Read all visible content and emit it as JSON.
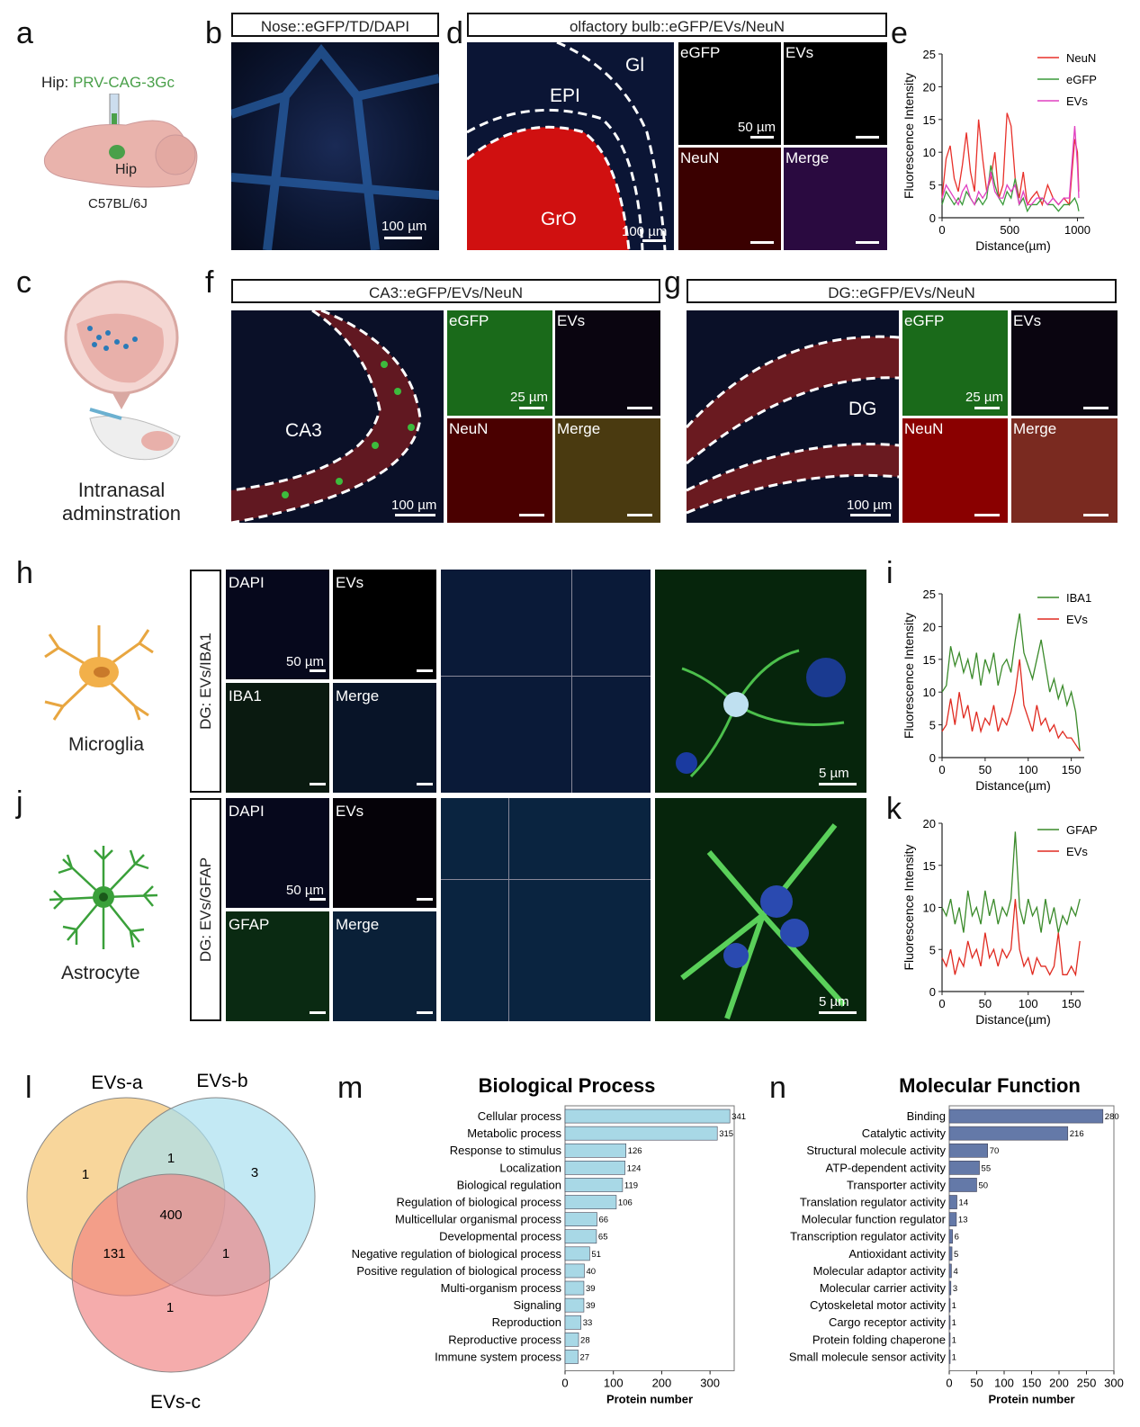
{
  "panels": {
    "a": {
      "letter": "a",
      "injection_prefix": "Hip: ",
      "injection_virus": "PRV-CAG-3Gc",
      "region": "Hip",
      "strain": "C57BL/6J"
    },
    "b": {
      "letter": "b",
      "title": "Nose::eGFP/TD/DAPI",
      "scale": "100 µm"
    },
    "c": {
      "letter": "c",
      "caption_line1": "Intranasal",
      "caption_line2": "adminstration"
    },
    "d": {
      "letter": "d",
      "title": "olfactory bulb::eGFP/EVs/NeuN",
      "regions": [
        "Gl",
        "EPI",
        "GrO"
      ],
      "scale_main": "100 µm",
      "scale_inset": "50 µm",
      "insets": [
        "eGFP",
        "EVs",
        "NeuN",
        "Merge"
      ]
    },
    "f": {
      "letter": "f",
      "title": "CA3::eGFP/EVs/NeuN",
      "region": "CA3",
      "scale_main": "100 µm",
      "scale_inset": "25 µm",
      "insets": [
        "eGFP",
        "EVs",
        "NeuN",
        "Merge"
      ]
    },
    "g": {
      "letter": "g",
      "title": "DG::eGFP/EVs/NeuN",
      "region": "DG",
      "scale_main": "100 µm",
      "scale_inset": "25 µm",
      "insets": [
        "eGFP",
        "EVs",
        "NeuN",
        "Merge"
      ]
    },
    "h": {
      "letter": "h",
      "cell": "Microglia",
      "side_label": "DG: EVs/IBA1",
      "insets": [
        "DAPI",
        "EVs",
        "IBA1",
        "Merge"
      ],
      "scale_inset": "50 µm",
      "scale_zoom": "5 µm"
    },
    "j": {
      "letter": "j",
      "cell": "Astrocyte",
      "side_label": "DG: EVs/GFAP",
      "insets": [
        "DAPI",
        "EVs",
        "GFAP",
        "Merge"
      ],
      "scale_inset": "50 µm",
      "scale_zoom": "5 µm"
    },
    "l": {
      "letter": "l",
      "sets": [
        "EVs-a",
        "EVs-b",
        "EVs-c"
      ],
      "regions": {
        "a_only": "1",
        "ab": "1",
        "b_only": "3",
        "abc": "400",
        "ac": "131",
        "bc": "1",
        "c_only": "1"
      }
    },
    "m": {
      "letter": "m"
    },
    "n": {
      "letter": "n"
    },
    "e": {
      "letter": "e"
    },
    "i": {
      "letter": "i"
    },
    "k": {
      "letter": "k"
    }
  },
  "colors": {
    "neun": "#e8302a",
    "egfp": "#3a9a3a",
    "evs": "#e040c0",
    "iba1": "#3a8a2a",
    "gfap": "#3a8a2a",
    "evs_red": "#e02a20",
    "bar_m": "#a8d8e6",
    "bar_n": "#6479a8",
    "venn_a": "#f5c87a",
    "venn_b": "#a9dff0",
    "venn_c": "#f08080"
  },
  "chart_data": [
    {
      "panel": "e",
      "type": "line",
      "xlabel": "Distance(µm)",
      "ylabel": "Fluorescence Intensity",
      "xlim": [
        0,
        1050
      ],
      "ylim": [
        0,
        25
      ],
      "xticks": [
        0,
        500,
        1000
      ],
      "yticks": [
        0,
        5,
        10,
        15,
        20,
        25
      ],
      "series": [
        {
          "name": "NeuN",
          "color": "#e8302a",
          "x": [
            0,
            30,
            60,
            90,
            120,
            150,
            180,
            210,
            240,
            270,
            300,
            330,
            360,
            390,
            420,
            450,
            480,
            510,
            540,
            570,
            600,
            630,
            660,
            700,
            740,
            780,
            820,
            860,
            900,
            940,
            980,
            1000,
            1010
          ],
          "values": [
            3,
            9,
            11,
            6,
            4,
            8,
            13,
            7,
            4,
            15,
            9,
            4,
            6,
            10,
            3,
            5,
            16,
            14,
            6,
            3,
            7,
            2,
            3,
            4,
            2,
            5,
            3,
            2,
            3,
            2,
            12,
            10,
            4
          ]
        },
        {
          "name": "eGFP",
          "color": "#3a9a3a",
          "x": [
            0,
            30,
            60,
            90,
            120,
            150,
            180,
            210,
            240,
            270,
            300,
            330,
            360,
            390,
            420,
            450,
            480,
            510,
            540,
            570,
            600,
            630,
            660,
            700,
            740,
            780,
            820,
            860,
            900,
            940,
            980,
            1000,
            1010
          ],
          "values": [
            2,
            4,
            3,
            2,
            3,
            2,
            4,
            3,
            2,
            3,
            2,
            3,
            8,
            5,
            3,
            2,
            4,
            3,
            6,
            2,
            3,
            1,
            2,
            2,
            3,
            2,
            2,
            1,
            2,
            2,
            3,
            2,
            1
          ]
        },
        {
          "name": "EVs",
          "color": "#e040c0",
          "x": [
            0,
            30,
            60,
            90,
            120,
            150,
            180,
            210,
            240,
            270,
            300,
            330,
            360,
            390,
            420,
            450,
            480,
            510,
            540,
            570,
            600,
            630,
            660,
            700,
            740,
            780,
            820,
            860,
            900,
            940,
            980,
            1000,
            1010
          ],
          "values": [
            3,
            5,
            4,
            3,
            2,
            4,
            5,
            3,
            2,
            4,
            3,
            4,
            7,
            4,
            3,
            3,
            5,
            4,
            5,
            2,
            4,
            2,
            2,
            3,
            3,
            2,
            3,
            2,
            3,
            3,
            14,
            8,
            3
          ]
        }
      ]
    },
    {
      "panel": "i",
      "type": "line",
      "xlabel": "Distance(µm)",
      "ylabel": "Fluorescence Intensity",
      "xlim": [
        0,
        165
      ],
      "ylim": [
        0,
        25
      ],
      "xticks": [
        0,
        50,
        100,
        150
      ],
      "yticks": [
        0,
        5,
        10,
        15,
        20,
        25
      ],
      "series": [
        {
          "name": "IBA1",
          "color": "#3a8a2a",
          "x": [
            0,
            5,
            10,
            15,
            20,
            25,
            30,
            35,
            40,
            45,
            50,
            55,
            60,
            65,
            70,
            75,
            80,
            85,
            90,
            95,
            100,
            105,
            110,
            115,
            120,
            125,
            130,
            135,
            140,
            145,
            150,
            155,
            160
          ],
          "values": [
            10,
            11,
            17,
            14,
            16,
            13,
            15,
            12,
            16,
            11,
            15,
            13,
            16,
            11,
            14,
            15,
            13,
            18,
            22,
            16,
            14,
            12,
            15,
            18,
            14,
            10,
            12,
            9,
            11,
            8,
            10,
            7,
            1
          ]
        },
        {
          "name": "EVs",
          "color": "#e02a20",
          "x": [
            0,
            5,
            10,
            15,
            20,
            25,
            30,
            35,
            40,
            45,
            50,
            55,
            60,
            65,
            70,
            75,
            80,
            85,
            90,
            95,
            100,
            105,
            110,
            115,
            120,
            125,
            130,
            135,
            140,
            145,
            150,
            155,
            160
          ],
          "values": [
            4,
            5,
            9,
            5,
            10,
            6,
            8,
            4,
            7,
            4,
            6,
            5,
            8,
            4,
            6,
            5,
            7,
            10,
            15,
            8,
            6,
            4,
            8,
            5,
            6,
            4,
            5,
            3,
            4,
            3,
            3,
            2,
            1
          ]
        }
      ]
    },
    {
      "panel": "k",
      "type": "line",
      "xlabel": "Distance(µm)",
      "ylabel": "Fluorescence Intensity",
      "xlim": [
        0,
        165
      ],
      "ylim": [
        0,
        20
      ],
      "xticks": [
        0,
        50,
        100,
        150
      ],
      "yticks": [
        0,
        5,
        10,
        15,
        20
      ],
      "series": [
        {
          "name": "GFAP",
          "color": "#3a8a2a",
          "x": [
            0,
            5,
            10,
            15,
            20,
            25,
            30,
            35,
            40,
            45,
            50,
            55,
            60,
            65,
            70,
            75,
            80,
            85,
            90,
            95,
            100,
            105,
            110,
            115,
            120,
            125,
            130,
            135,
            140,
            145,
            150,
            155,
            160
          ],
          "values": [
            10,
            9,
            11,
            8,
            10,
            7,
            12,
            9,
            10,
            8,
            12,
            9,
            11,
            8,
            10,
            9,
            11,
            19,
            10,
            8,
            11,
            9,
            10,
            7,
            11,
            8,
            10,
            7,
            9,
            8,
            10,
            9,
            11
          ]
        },
        {
          "name": "EVs",
          "color": "#e02a20",
          "x": [
            0,
            5,
            10,
            15,
            20,
            25,
            30,
            35,
            40,
            45,
            50,
            55,
            60,
            65,
            70,
            75,
            80,
            85,
            90,
            95,
            100,
            105,
            110,
            115,
            120,
            125,
            130,
            135,
            140,
            145,
            150,
            155,
            160
          ],
          "values": [
            4,
            3,
            5,
            2,
            4,
            3,
            6,
            4,
            5,
            3,
            7,
            4,
            5,
            3,
            5,
            4,
            5,
            11,
            5,
            3,
            4,
            2,
            4,
            3,
            3,
            2,
            3,
            7,
            2,
            2,
            3,
            2,
            6
          ]
        }
      ]
    },
    {
      "panel": "m",
      "type": "bar",
      "title": "Biological Process",
      "xlabel": "Protein number",
      "xlim": [
        0,
        350
      ],
      "xticks": [
        0,
        100,
        200,
        300
      ],
      "categories": [
        "Cellular process",
        "Metabolic process",
        "Response to stimulus",
        "Localization",
        "Biological regulation",
        "Regulation of biological process",
        "Multicellular organismal process",
        "Developmental process",
        "Negative regulation of biological process",
        "Positive regulation of biological process",
        "Multi-organism process",
        "Signaling",
        "Reproduction",
        "Reproductive process",
        "Immune system process"
      ],
      "values": [
        341,
        315,
        126,
        124,
        119,
        106,
        66,
        65,
        51,
        40,
        39,
        39,
        33,
        28,
        27
      ]
    },
    {
      "panel": "n",
      "type": "bar",
      "title": "Molecular Function",
      "xlabel": "Protein number",
      "xlim": [
        0,
        300
      ],
      "xticks": [
        0,
        50,
        100,
        150,
        200,
        250,
        300
      ],
      "categories": [
        "Binding",
        "Catalytic activity",
        "Structural molecule activity",
        "ATP-dependent activity",
        "Transporter activity",
        "Translation regulator activity",
        "Molecular function regulator",
        "Transcription regulator activity",
        "Antioxidant activity",
        "Molecular adaptor activity",
        "Molecular carrier activity",
        "Cytoskeletal motor activity",
        "Cargo receptor activity",
        "Protein folding chaperone",
        "Small molecule sensor activity"
      ],
      "values": [
        280,
        216,
        70,
        55,
        50,
        14,
        13,
        6,
        5,
        4,
        3,
        1,
        1,
        1,
        1
      ]
    }
  ]
}
